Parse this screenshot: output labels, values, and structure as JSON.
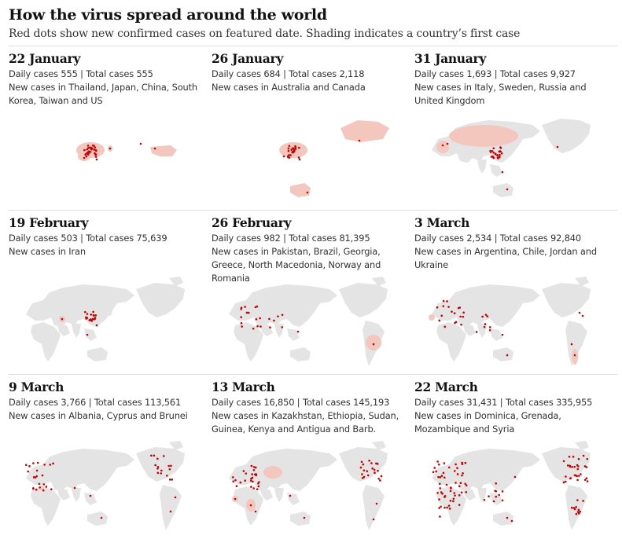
{
  "header": {
    "title": "How the virus spread around the world",
    "subtitle": "Red dots show new confirmed cases on featured date. Shading indicates a country’s first case"
  },
  "colors": {
    "land": "#e4e4e4",
    "first_case_shading": "#f3c7bd",
    "case_dot": "#c70000"
  },
  "panels": [
    {
      "date": "22 January",
      "stats": "Daily cases 555 | Total cases 555",
      "new_cases": "New cases in Thailand, Japan, China, South Korea, Taiwan and US"
    },
    {
      "date": "26 January",
      "stats": "Daily cases 684 | Total cases 2,118",
      "new_cases": "New cases in Australia and Canada"
    },
    {
      "date": "31 January",
      "stats": "Daily cases 1,693 | Total cases 9,927",
      "new_cases": "New cases in Italy, Sweden, Russia and United Kingdom"
    },
    {
      "date": "19 February",
      "stats": "Daily cases 503 | Total cases 75,639",
      "new_cases": "New cases in Iran"
    },
    {
      "date": "26 February",
      "stats": "Daily cases 982 | Total cases 81,395",
      "new_cases": "New cases in Pakistan, Brazil, Georgia, Greece, North Macedonia, Norway and Romania"
    },
    {
      "date": "3 March",
      "stats": "Daily cases 2,534 | Total cases 92,840",
      "new_cases": "New cases in Argentina, Chile, Jordan and Ukraine"
    },
    {
      "date": "9 March",
      "stats": "Daily cases 3,766 | Total cases 113,561",
      "new_cases": "New cases in Albania, Cyprus and Brunei"
    },
    {
      "date": "13 March",
      "stats": "Daily cases 16,850 | Total cases 145,193",
      "new_cases": "New cases in Kazakhstan, Ethiopia, Sudan, Guinea, Kenya and Antigua and Barb."
    },
    {
      "date": "22 March",
      "stats": "Daily cases 31,431 | Total cases 335,955",
      "new_cases": "New cases in Dominica, Grenada, Mozambique and Syria"
    }
  ]
}
